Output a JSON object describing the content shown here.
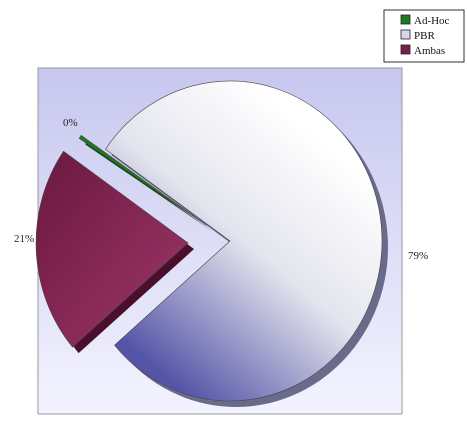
{
  "chart_data": {
    "type": "pie",
    "title": "",
    "categories": [
      "Ad-Hoc",
      "PBR",
      "Ambas"
    ],
    "values": [
      0,
      79,
      21
    ],
    "data_labels": [
      "0%",
      "79%",
      "21%"
    ],
    "exploded": true,
    "three_d": true,
    "legend_placement": "top-right",
    "colors": {
      "Ad-Hoc": "#1f7a1f",
      "PBR": "#c9c9e8",
      "Ambas": "#7a1f4a",
      "plot_background": "#d9d9f5"
    }
  }
}
